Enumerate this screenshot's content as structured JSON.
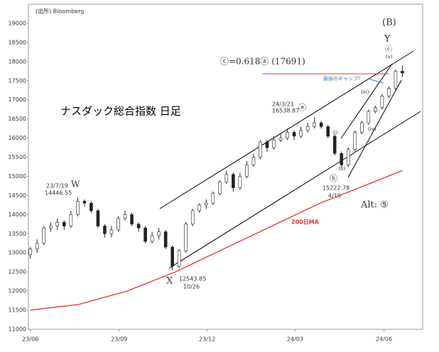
{
  "chart_data": {
    "type": "candlestick",
    "source": "(出所) Bloomberg",
    "title": "ナスダック総合指数 日足",
    "annotations": {
      "wave_b": "(B)",
      "y": "Y",
      "target": "ⓒ=0.618ⓐ (17691)",
      "gap": "最後のギャップ?",
      "a_date": "24/3/21",
      "a_value": "16538.87",
      "a": "ⓐ",
      "w_date": "23/7/19",
      "w_value": "14446.55",
      "w": "W",
      "x": "X",
      "x_value": "12543.85",
      "x_date": "10/26",
      "b_value": "15222.78",
      "b_date": "4/19",
      "b": "ⓑ",
      "alt": "Alt: ⑤",
      "ma": "200日MA",
      "i": "(i)",
      "ii": "(ii)",
      "iii": "(iii)",
      "iv": "(iv)",
      "v": "(v)",
      "c": "ⓒ"
    },
    "x": [
      0,
      7,
      14,
      21,
      28,
      35,
      42,
      49,
      56,
      63,
      70,
      77,
      84,
      91,
      98,
      105,
      112,
      119,
      126,
      133,
      140,
      147,
      154,
      161,
      168,
      175,
      182,
      189,
      196,
      203,
      210,
      217,
      224,
      231,
      238,
      245,
      252,
      259,
      266,
      273,
      280,
      287,
      294,
      301,
      308,
      315,
      322,
      329,
      336,
      343,
      350,
      357,
      364,
      371,
      378,
      385
    ],
    "open": [
      12950,
      13100,
      13250,
      13650,
      13700,
      13800,
      13700,
      14000,
      14350,
      14300,
      14100,
      13700,
      13500,
      13600,
      13900,
      14000,
      13750,
      13650,
      13300,
      13450,
      13550,
      13150,
      12650,
      13050,
      13750,
      14100,
      14250,
      14300,
      14550,
      14850,
      15050,
      14700,
      15000,
      15300,
      15500,
      15900,
      15750,
      15950,
      16000,
      16150,
      16050,
      16200,
      16300,
      16400,
      16300,
      16050,
      15600,
      15300,
      15700,
      16150,
      16400,
      16700,
      16800,
      17100,
      17300,
      17750
    ],
    "high": [
      13150,
      13350,
      13700,
      13800,
      13900,
      13850,
      14100,
      14446.55,
      14400,
      14350,
      14150,
      13750,
      13700,
      13950,
      14100,
      14050,
      13800,
      13700,
      13550,
      13650,
      13600,
      13200,
      13100,
      13800,
      14150,
      14300,
      14400,
      14600,
      14900,
      15150,
      15100,
      15100,
      15400,
      15600,
      15950,
      15950,
      16050,
      16100,
      16250,
      16200,
      16300,
      16400,
      16538.87,
      16450,
      16350,
      16100,
      15650,
      15750,
      16200,
      16450,
      16750,
      16850,
      17150,
      17350,
      17800,
      17900
    ],
    "low": [
      12850,
      13000,
      13200,
      13550,
      13600,
      13600,
      13650,
      13950,
      14200,
      14050,
      13650,
      13400,
      13400,
      13550,
      13850,
      13700,
      13550,
      13250,
      13250,
      13350,
      13100,
      12543.85,
      12600,
      13000,
      13700,
      14050,
      14150,
      14250,
      14500,
      14800,
      14600,
      14650,
      14950,
      15250,
      15450,
      15650,
      15700,
      15900,
      15950,
      15950,
      16000,
      16150,
      16250,
      16250,
      16000,
      15550,
      15222.78,
      15250,
      15650,
      16100,
      16350,
      16650,
      16750,
      17050,
      17250,
      17600
    ],
    "close": [
      13100,
      13250,
      13650,
      13700,
      13800,
      13700,
      14000,
      14350,
      14300,
      14100,
      13700,
      13500,
      13600,
      13900,
      14000,
      13750,
      13650,
      13300,
      13450,
      13550,
      13150,
      12650,
      13050,
      13750,
      14100,
      14250,
      14300,
      14550,
      14850,
      15050,
      14700,
      15000,
      15300,
      15500,
      15900,
      15750,
      15950,
      16000,
      16150,
      16050,
      16200,
      16300,
      16400,
      16300,
      16050,
      15600,
      15300,
      15700,
      16150,
      16400,
      16700,
      16800,
      17100,
      17300,
      17750,
      17700
    ],
    "ma_x": [
      0,
      50,
      100,
      150,
      200,
      250,
      300,
      350,
      385
    ],
    "ma": [
      11500,
      11650,
      12000,
      12500,
      13100,
      13700,
      14300,
      14800,
      15150
    ],
    "ma_color": "#e8302a",
    "xlim": [
      -2,
      406
    ],
    "ylim": [
      11000,
      19500
    ],
    "yticks": [
      11000,
      11500,
      12000,
      12500,
      13000,
      13500,
      14000,
      14500,
      15000,
      15500,
      16000,
      16500,
      17000,
      17500,
      18000,
      18500,
      19000
    ],
    "xticks": [
      {
        "value": 0,
        "label": "23/06"
      },
      {
        "value": 92,
        "label": "23/09"
      },
      {
        "value": 183,
        "label": "23/12"
      },
      {
        "value": 274,
        "label": "24/03"
      },
      {
        "value": 366,
        "label": "24/06"
      }
    ]
  }
}
